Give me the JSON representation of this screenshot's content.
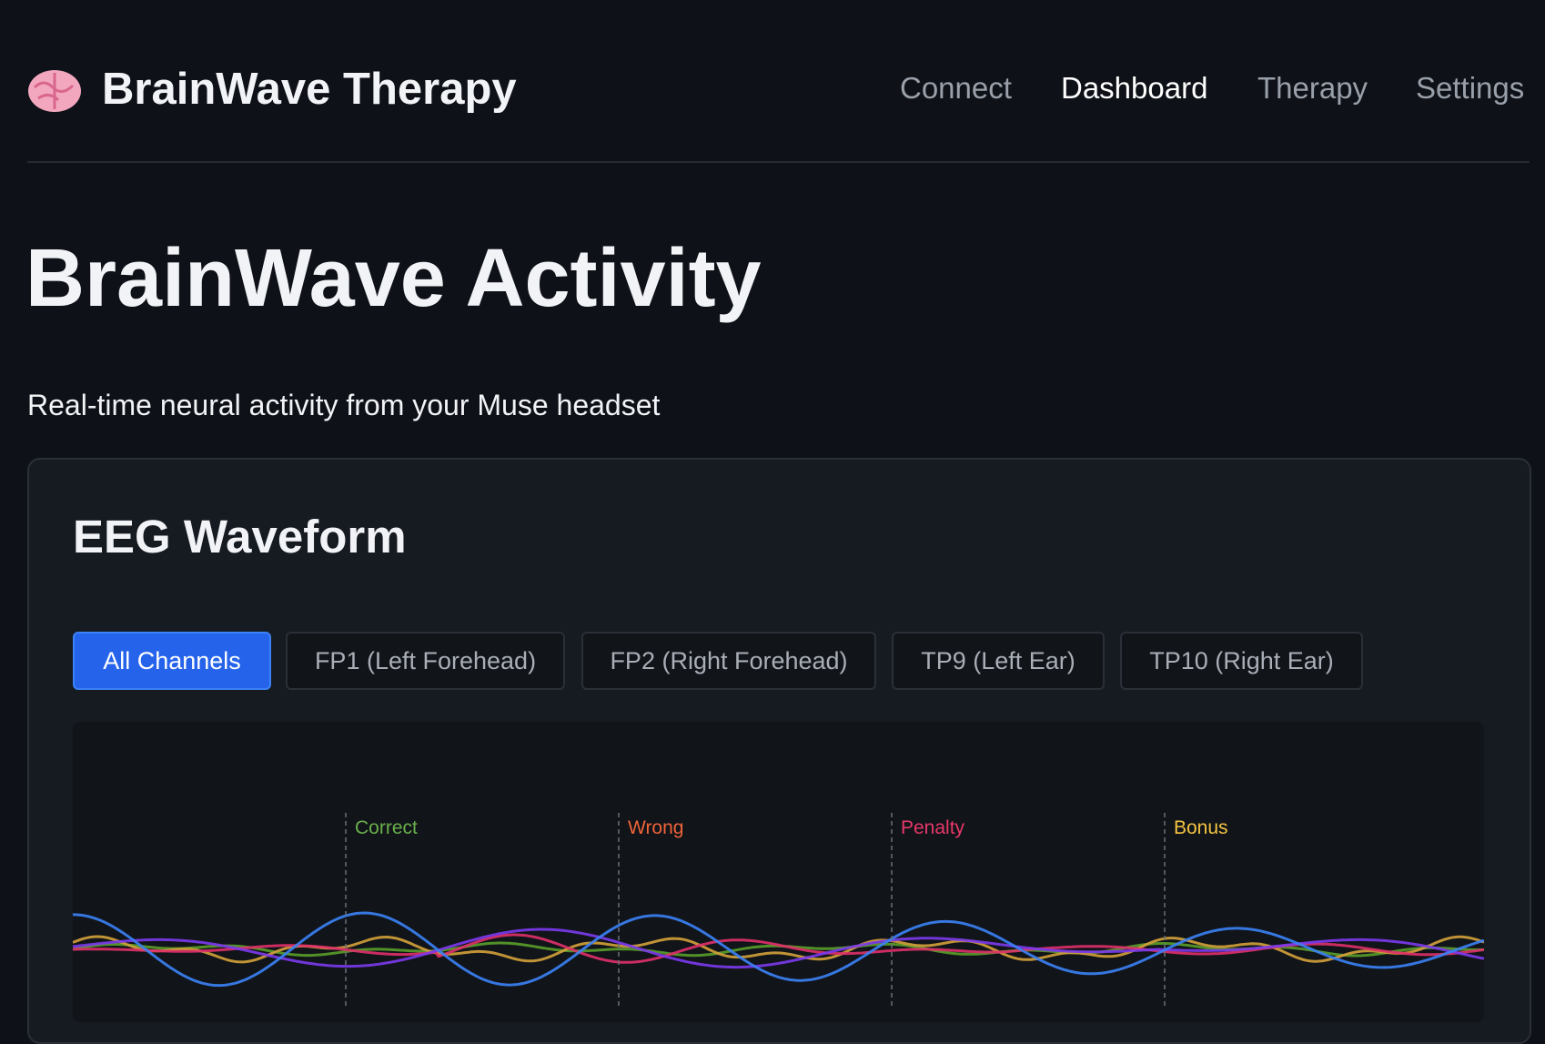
{
  "header": {
    "brand": "BrainWave Therapy",
    "nav": [
      "Connect",
      "Dashboard",
      "Therapy",
      "Settings"
    ],
    "active_nav": 1
  },
  "page": {
    "title": "BrainWave Activity",
    "subtitle": "Real-time neural activity from your Muse headset"
  },
  "card": {
    "title": "EEG Waveform",
    "tabs": [
      "All Channels",
      "FP1 (Left Forehead)",
      "FP2 (Right Forehead)",
      "TP9 (Left Ear)",
      "TP10 (Right Ear)"
    ],
    "active_tab": 0,
    "markers": [
      {
        "label": "Correct",
        "color": "#6ab04c"
      },
      {
        "label": "Wrong",
        "color": "#f0643a"
      },
      {
        "label": "Penalty",
        "color": "#e8386a"
      },
      {
        "label": "Bonus",
        "color": "#f5c542"
      }
    ]
  }
}
